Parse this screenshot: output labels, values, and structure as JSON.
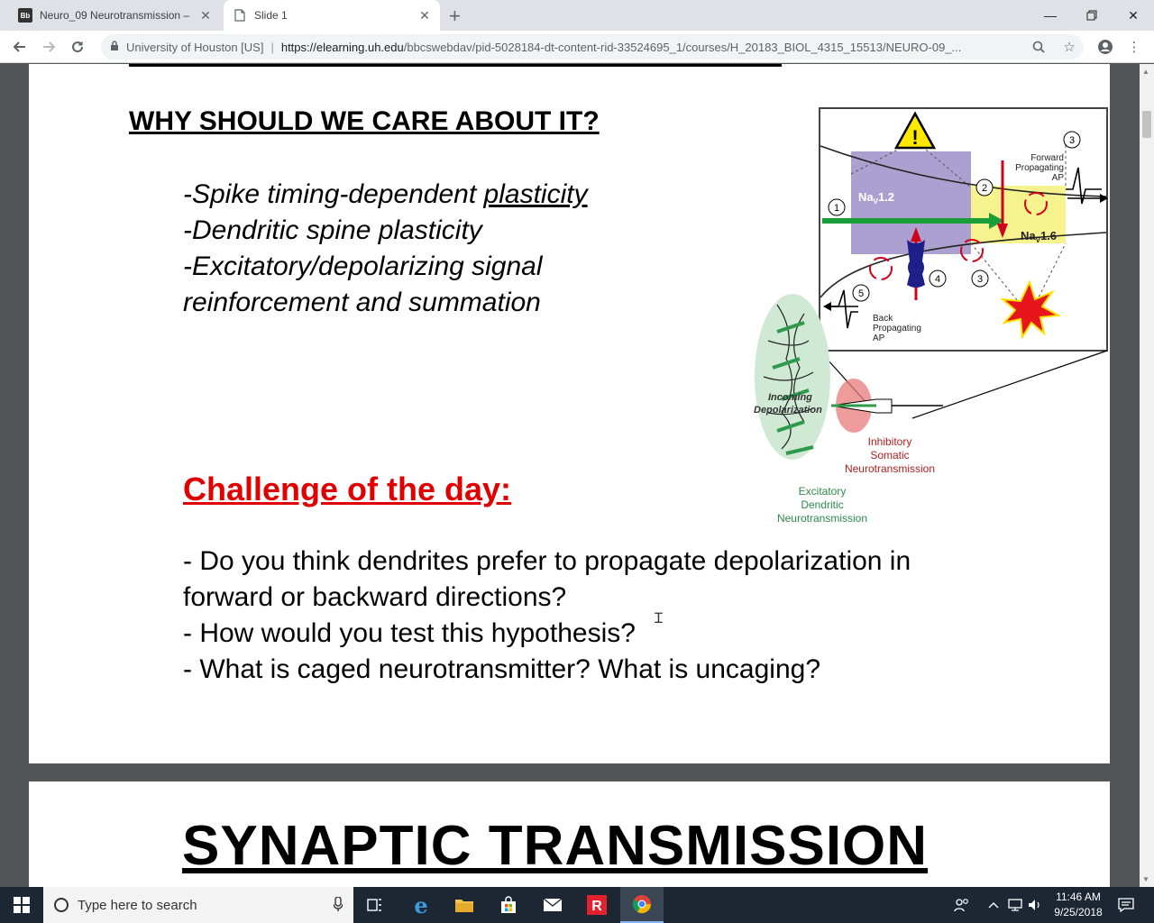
{
  "browser": {
    "tabs": [
      {
        "title": "Neuro_09 Neurotransmission – ",
        "favicon": "Bb",
        "active": false
      },
      {
        "title": "Slide 1",
        "active": true
      }
    ],
    "omnibox": {
      "site_identity": "University of Houston [US]",
      "separator": "|",
      "url_host": "https://elearning.uh.edu",
      "url_path": "/bbcswebdav/pid-5028184-dt-content-rid-33524695_1/courses/H_20183_BIOL_4315_15513/NEURO-09_..."
    }
  },
  "slide1": {
    "heading": "WHY SHOULD WE CARE ABOUT IT?",
    "bullets": {
      "b1_prefix": "-Spike timing-dependent ",
      "b1_underlined": "plasticity",
      "b2": "-Dendritic spine plasticity",
      "b3": "-Excitatory/depolarizing signal",
      "b3_cont": "reinforcement and summation"
    },
    "challenge_title": "Challenge of the day:",
    "questions": {
      "q1": "- Do you think dendrites prefer to propagate depolarization in",
      "q1_cont": "forward or backward directions?",
      "q2": "- How would you test this hypothesis?",
      "q3": "- What is caged neurotransmitter? What is uncaging?"
    },
    "figure": {
      "nav12": "Na",
      "nav12_sub": "V",
      "nav12_suffix": "1.2",
      "nav16": "Na",
      "nav16_sub": "V",
      "nav16_suffix": "1.6",
      "forward_1": "Forward",
      "forward_2": "Propagating",
      "forward_3": "AP",
      "back_1": "Back",
      "back_2": "Propagating",
      "back_3": "AP",
      "incoming_1": "Incoming",
      "incoming_2": "Depolarization",
      "inhib_1": "Inhibitory",
      "inhib_2": "Somatic",
      "inhib_3": "Neurotransmission",
      "excit_1": "Excitatory",
      "excit_2": "Dendritic",
      "excit_3": "Neurotransmission",
      "n1": "1",
      "n2": "2",
      "n3a": "3",
      "n3b": "3",
      "n4": "4",
      "n5": "5",
      "warning": "!"
    }
  },
  "slide2": {
    "title": "SYNAPTIC TRANSMISSION"
  },
  "taskbar": {
    "search_placeholder": "Type here to search",
    "time": "11:46 AM",
    "date": "9/25/2018"
  },
  "colors": {
    "challenge_red": "#e00000",
    "nav12_purple": "#9d8fc8",
    "nav16_yellow": "#f5f07a",
    "excitatory_green": "#2e9a4a",
    "inhibitory_red": "#e87a7a"
  }
}
